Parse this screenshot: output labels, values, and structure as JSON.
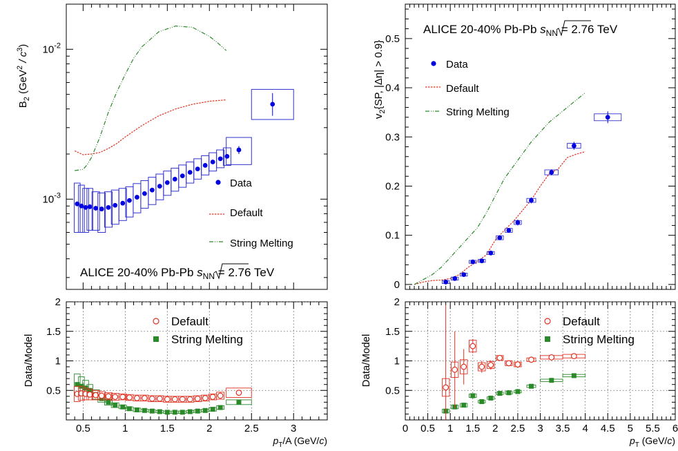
{
  "colors": {
    "data": "#0000e0",
    "default": "#e03020",
    "sm": "#2a8a2a",
    "sysbox": "#3030d0"
  },
  "chart_data": [
    {
      "id": "b2-top",
      "type": "scatter",
      "ylabel": "B_2 (GeV^2 / c^3)",
      "ylabel_main": "B",
      "ylabel_sub": "2",
      "ylabel_rest": "(GeV",
      "ylabel_sup": "2",
      "ylabel_end": " / c",
      "ylabel_sup2": "3",
      "ylabel_close": ")",
      "yscale": "log",
      "xlim": [
        0.3,
        3.4
      ],
      "ylim": [
        0.00025,
        0.02
      ],
      "y_ticks": [
        {
          "label": "10",
          "sup": "-3",
          "value": 0.001
        },
        {
          "label": "10",
          "sup": "-2",
          "value": 0.01
        }
      ],
      "annotation": {
        "pre": "ALICE 20-40% Pb-Pb ",
        "sqrt_var": "s",
        "sqrt_sub": "NN",
        "post": " = 2.76 TeV"
      },
      "legend": [
        {
          "label": "Data"
        },
        {
          "label": "Default"
        },
        {
          "label": "String Melting"
        }
      ],
      "series": [
        {
          "name": "Data",
          "kind": "points",
          "x": [
            0.43,
            0.48,
            0.53,
            0.58,
            0.65,
            0.72,
            0.8,
            0.88,
            0.97,
            1.05,
            1.14,
            1.23,
            1.32,
            1.41,
            1.5,
            1.59,
            1.68,
            1.77,
            1.86,
            1.95,
            2.04,
            2.13,
            2.21,
            2.35,
            2.75
          ],
          "y": [
            0.00093,
            0.0009,
            0.00088,
            0.00089,
            0.00087,
            0.00086,
            0.00088,
            0.00091,
            0.00094,
            0.00098,
            0.00103,
            0.00109,
            0.00115,
            0.00122,
            0.00129,
            0.00136,
            0.00143,
            0.00151,
            0.00159,
            0.00168,
            0.00177,
            0.00186,
            0.00193,
            0.00213,
            0.0043
          ],
          "syslo": [
            0.0006,
            0.0006,
            0.0006,
            0.00062,
            0.00062,
            0.0006,
            0.00065,
            0.00068,
            0.00072,
            0.00076,
            0.00081,
            0.00087,
            0.00092,
            0.00099,
            0.00106,
            0.00113,
            0.0012,
            0.00128,
            0.00136,
            0.00145,
            0.00154,
            0.00162,
            0.00168,
            0.0017,
            0.0034
          ],
          "syshi": [
            0.00128,
            0.00124,
            0.00118,
            0.00118,
            0.00112,
            0.0011,
            0.00112,
            0.00115,
            0.00118,
            0.00121,
            0.00127,
            0.00133,
            0.0014,
            0.00147,
            0.00154,
            0.00161,
            0.00169,
            0.00177,
            0.00186,
            0.00195,
            0.00204,
            0.00213,
            0.0022,
            0.00258,
            0.0054
          ],
          "xw": [
            0.035,
            0.035,
            0.035,
            0.035,
            0.045,
            0.045,
            0.045,
            0.045,
            0.045,
            0.045,
            0.045,
            0.045,
            0.045,
            0.045,
            0.045,
            0.045,
            0.045,
            0.045,
            0.045,
            0.045,
            0.045,
            0.045,
            0.045,
            0.15,
            0.25
          ]
        },
        {
          "name": "Default",
          "kind": "line",
          "x": [
            0.4,
            0.5,
            0.6,
            0.7,
            0.8,
            0.9,
            1.0,
            1.2,
            1.4,
            1.6,
            1.8,
            2.0,
            2.2
          ],
          "y": [
            0.0021,
            0.00198,
            0.002,
            0.00205,
            0.00218,
            0.00235,
            0.0026,
            0.0031,
            0.0036,
            0.004,
            0.0043,
            0.0045,
            0.0046
          ]
        },
        {
          "name": "String Melting",
          "kind": "line",
          "x": [
            0.4,
            0.5,
            0.55,
            0.6,
            0.7,
            0.8,
            0.9,
            1.0,
            1.1,
            1.2,
            1.4,
            1.6,
            1.8,
            2.0,
            2.1,
            2.2
          ],
          "y": [
            0.00155,
            0.00158,
            0.0017,
            0.0019,
            0.0026,
            0.0038,
            0.0052,
            0.0068,
            0.0087,
            0.0104,
            0.0131,
            0.0143,
            0.014,
            0.0122,
            0.011,
            0.0098
          ]
        }
      ]
    },
    {
      "id": "b2-ratio",
      "type": "scatter",
      "xlabel": "p_T/A (GeV/c)",
      "ylabel": "Data/Model",
      "xlim": [
        0.3,
        3.4
      ],
      "ylim": [
        0,
        2
      ],
      "x_ticks": [
        {
          "label": "0.5",
          "value": 0.5
        },
        {
          "label": "1",
          "value": 1
        },
        {
          "label": "1.5",
          "value": 1.5
        },
        {
          "label": "2",
          "value": 2
        },
        {
          "label": "2.5",
          "value": 2.5
        },
        {
          "label": "3",
          "value": 3
        }
      ],
      "y_ticks": [
        {
          "label": "0.5",
          "value": 0.5
        },
        {
          "label": "1",
          "value": 1
        },
        {
          "label": "1.5",
          "value": 1.5
        },
        {
          "label": "2",
          "value": 2
        }
      ],
      "legend": [
        {
          "label": "Default"
        },
        {
          "label": "String Melting"
        }
      ],
      "series": [
        {
          "name": "Default",
          "x": [
            0.43,
            0.48,
            0.53,
            0.58,
            0.65,
            0.72,
            0.8,
            0.88,
            0.97,
            1.05,
            1.14,
            1.23,
            1.32,
            1.41,
            1.5,
            1.59,
            1.68,
            1.77,
            1.86,
            1.95,
            2.04,
            2.13,
            2.35
          ],
          "y": [
            0.44,
            0.45,
            0.44,
            0.43,
            0.42,
            0.41,
            0.4,
            0.39,
            0.39,
            0.38,
            0.37,
            0.37,
            0.36,
            0.36,
            0.35,
            0.35,
            0.35,
            0.35,
            0.36,
            0.37,
            0.39,
            0.41,
            0.46
          ],
          "sys": [
            0.13,
            0.12,
            0.1,
            0.09,
            0.08,
            0.07,
            0.06,
            0.06,
            0.05,
            0.05,
            0.05,
            0.05,
            0.05,
            0.05,
            0.05,
            0.05,
            0.05,
            0.05,
            0.05,
            0.05,
            0.05,
            0.06,
            0.08
          ]
        },
        {
          "name": "String Melting",
          "x": [
            0.43,
            0.48,
            0.53,
            0.58,
            0.65,
            0.72,
            0.8,
            0.88,
            0.97,
            1.05,
            1.14,
            1.23,
            1.32,
            1.41,
            1.5,
            1.59,
            1.68,
            1.77,
            1.86,
            1.95,
            2.04,
            2.13,
            2.35
          ],
          "y": [
            0.6,
            0.57,
            0.54,
            0.5,
            0.43,
            0.36,
            0.3,
            0.25,
            0.22,
            0.19,
            0.17,
            0.16,
            0.15,
            0.14,
            0.13,
            0.13,
            0.13,
            0.14,
            0.15,
            0.16,
            0.18,
            0.21,
            0.3
          ],
          "sys": [
            0.18,
            0.16,
            0.13,
            0.1,
            0.08,
            0.06,
            0.05,
            0.04,
            0.03,
            0.03,
            0.03,
            0.02,
            0.02,
            0.02,
            0.02,
            0.02,
            0.02,
            0.02,
            0.02,
            0.02,
            0.03,
            0.03,
            0.04
          ]
        }
      ]
    },
    {
      "id": "v2-top",
      "type": "scatter",
      "ylabel": "v_2{SP, |Δη| > 0.9}",
      "ylabel_main": "v",
      "ylabel_sub": "2",
      "ylabel_rest": "{SP, |Δη| > 0.9}",
      "xlim": [
        0,
        6
      ],
      "ylim": [
        -0.01,
        0.57
      ],
      "y_ticks": [
        {
          "label": "0",
          "value": 0
        },
        {
          "label": "0.1",
          "value": 0.1
        },
        {
          "label": "0.2",
          "value": 0.2
        },
        {
          "label": "0.3",
          "value": 0.3
        },
        {
          "label": "0.4",
          "value": 0.4
        },
        {
          "label": "0.5",
          "value": 0.5
        }
      ],
      "annotation": {
        "pre": "ALICE 20-40% Pb-Pb ",
        "sqrt_var": "s",
        "sqrt_sub": "NN",
        "post": " = 2.76 TeV"
      },
      "legend": [
        {
          "label": "Data"
        },
        {
          "label": "Default"
        },
        {
          "label": "String Melting"
        }
      ],
      "series": [
        {
          "name": "Data",
          "kind": "points",
          "x": [
            0.9,
            1.1,
            1.3,
            1.5,
            1.7,
            1.9,
            2.1,
            2.3,
            2.5,
            2.8,
            3.25,
            3.75,
            4.5
          ],
          "y": [
            0.005,
            0.012,
            0.02,
            0.046,
            0.048,
            0.064,
            0.095,
            0.11,
            0.126,
            0.171,
            0.228,
            0.282,
            0.34
          ],
          "stat": [
            0.004,
            0.004,
            0.004,
            0.004,
            0.004,
            0.004,
            0.005,
            0.005,
            0.006,
            0.006,
            0.006,
            0.008,
            0.012
          ],
          "sys": [
            0.003,
            0.003,
            0.003,
            0.003,
            0.003,
            0.003,
            0.004,
            0.004,
            0.004,
            0.004,
            0.005,
            0.005,
            0.007
          ],
          "xw": [
            0.08,
            0.08,
            0.08,
            0.08,
            0.08,
            0.08,
            0.08,
            0.08,
            0.08,
            0.1,
            0.15,
            0.15,
            0.3
          ]
        },
        {
          "name": "Default",
          "kind": "line",
          "x": [
            0.2,
            0.4,
            0.6,
            0.8,
            1.0,
            1.2,
            1.4,
            1.6,
            1.8,
            2.0,
            2.2,
            2.4,
            2.6,
            2.8,
            3.0,
            3.2,
            3.4,
            3.6,
            3.8,
            4.0
          ],
          "y": [
            0,
            0.005,
            0.008,
            0.009,
            0.012,
            0.02,
            0.035,
            0.047,
            0.06,
            0.09,
            0.11,
            0.128,
            0.15,
            0.172,
            0.2,
            0.225,
            0.235,
            0.258,
            0.265,
            0.27
          ]
        },
        {
          "name": "String Melting",
          "kind": "line",
          "x": [
            0.2,
            0.4,
            0.6,
            0.8,
            1.0,
            1.2,
            1.4,
            1.6,
            1.8,
            2.0,
            2.2,
            2.4,
            2.6,
            2.8,
            3.0,
            3.2,
            3.4,
            3.6,
            3.8,
            4.0
          ],
          "y": [
            0,
            0.01,
            0.02,
            0.035,
            0.055,
            0.075,
            0.095,
            0.115,
            0.145,
            0.18,
            0.215,
            0.24,
            0.265,
            0.29,
            0.31,
            0.33,
            0.345,
            0.36,
            0.375,
            0.39
          ]
        }
      ]
    },
    {
      "id": "v2-ratio",
      "type": "scatter",
      "xlabel": "p_T (GeV/c)",
      "ylabel": "Data/Model",
      "xlim": [
        0,
        6
      ],
      "ylim": [
        0,
        2
      ],
      "x_ticks": [
        {
          "label": "0",
          "value": 0
        },
        {
          "label": "0.5",
          "value": 0.5
        },
        {
          "label": "1",
          "value": 1
        },
        {
          "label": "1.5",
          "value": 1.5
        },
        {
          "label": "2",
          "value": 2
        },
        {
          "label": "2.5",
          "value": 2.5
        },
        {
          "label": "3",
          "value": 3
        },
        {
          "label": "3.5",
          "value": 3.5
        },
        {
          "label": "4",
          "value": 4
        },
        {
          "label": "4.5",
          "value": 4.5
        },
        {
          "label": "5",
          "value": 5
        },
        {
          "label": "5.5",
          "value": 5.5
        },
        {
          "label": "6",
          "value": 6
        }
      ],
      "y_ticks": [
        {
          "label": "0.5",
          "value": 0.5
        },
        {
          "label": "1",
          "value": 1
        },
        {
          "label": "1.5",
          "value": 1.5
        },
        {
          "label": "2",
          "value": 2
        }
      ],
      "legend": [
        {
          "label": "Default"
        },
        {
          "label": "String Melting"
        }
      ],
      "series": [
        {
          "name": "Default",
          "x": [
            0.9,
            1.1,
            1.3,
            1.5,
            1.7,
            1.9,
            2.1,
            2.3,
            2.5,
            2.8,
            3.25,
            3.75
          ],
          "y": [
            0.55,
            0.85,
            0.9,
            1.25,
            0.9,
            0.93,
            1.05,
            0.96,
            0.94,
            1.02,
            1.06,
            1.08
          ],
          "stat": [
            1.4,
            0.65,
            0.3,
            0.12,
            0.1,
            0.08,
            0.05,
            0.04,
            0.04,
            0.03,
            0.03,
            0.03
          ],
          "sys": [
            0.15,
            0.13,
            0.12,
            0.1,
            0.07,
            0.06,
            0.04,
            0.04,
            0.04,
            0.03,
            0.03,
            0.03
          ]
        },
        {
          "name": "String Melting",
          "x": [
            0.9,
            1.1,
            1.3,
            1.5,
            1.7,
            1.9,
            2.1,
            2.3,
            2.5,
            2.8,
            3.25,
            3.75
          ],
          "y": [
            0.15,
            0.22,
            0.25,
            0.41,
            0.31,
            0.37,
            0.45,
            0.46,
            0.48,
            0.57,
            0.67,
            0.75
          ],
          "sys": [
            0.03,
            0.03,
            0.03,
            0.03,
            0.02,
            0.02,
            0.02,
            0.02,
            0.02,
            0.02,
            0.02,
            0.02
          ]
        }
      ]
    }
  ]
}
